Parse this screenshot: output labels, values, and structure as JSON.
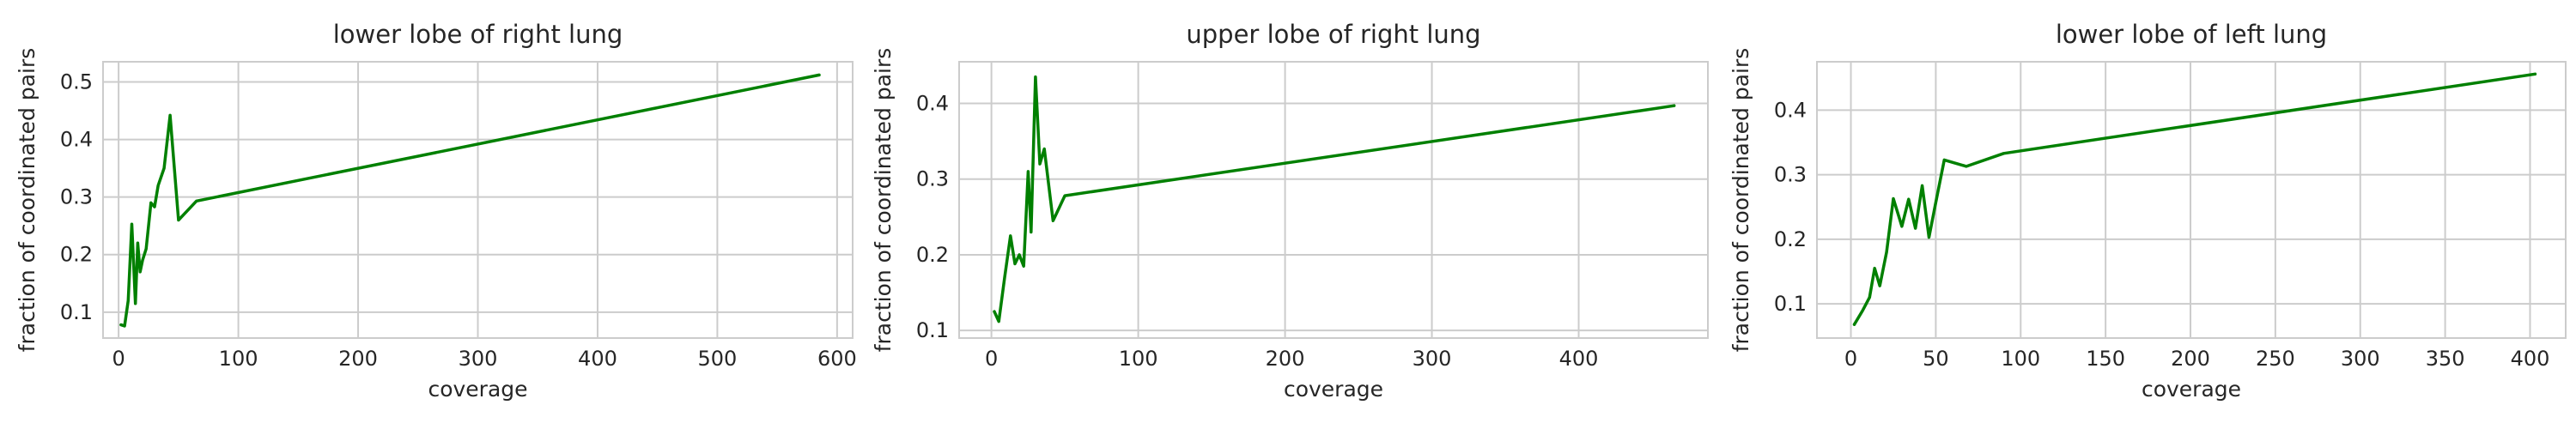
{
  "style": {
    "line_color": "#008000",
    "grid_color": "#cccccc",
    "background": "#ffffff"
  },
  "chart_data": [
    {
      "type": "line",
      "title": "lower lobe of right lung",
      "xlabel": "coverage",
      "ylabel": "fraction of coordinated pairs",
      "xlim": [
        -13,
        613
      ],
      "ylim": [
        0.055,
        0.535
      ],
      "xticks": [
        0,
        100,
        200,
        300,
        400,
        500,
        600
      ],
      "yticks": [
        0.1,
        0.2,
        0.3,
        0.4,
        0.5
      ],
      "grid": true,
      "series": [
        {
          "x": [
            2,
            5,
            8,
            11,
            14,
            16,
            18,
            20,
            23,
            27,
            30,
            33,
            38,
            43,
            50,
            65,
            585
          ],
          "y": [
            0.078,
            0.076,
            0.12,
            0.253,
            0.115,
            0.22,
            0.17,
            0.19,
            0.21,
            0.29,
            0.283,
            0.32,
            0.35,
            0.442,
            0.26,
            0.293,
            0.512
          ]
        }
      ]
    },
    {
      "type": "line",
      "title": "upper lobe of right lung",
      "xlabel": "coverage",
      "ylabel": "fraction of coordinated pairs",
      "xlim": [
        -22,
        488
      ],
      "ylim": [
        0.09,
        0.455
      ],
      "xticks": [
        0,
        100,
        200,
        300,
        400
      ],
      "yticks": [
        0.1,
        0.2,
        0.3,
        0.4
      ],
      "grid": true,
      "series": [
        {
          "x": [
            2,
            5,
            9,
            13,
            16,
            19,
            22,
            25,
            27,
            30,
            33,
            36,
            42,
            50,
            465
          ],
          "y": [
            0.125,
            0.112,
            0.17,
            0.225,
            0.188,
            0.2,
            0.185,
            0.31,
            0.23,
            0.435,
            0.32,
            0.34,
            0.245,
            0.278,
            0.397
          ]
        }
      ]
    },
    {
      "type": "line",
      "title": "lower lobe of left lung",
      "xlabel": "coverage",
      "ylabel": "fraction of coordinated pairs",
      "xlim": [
        -20,
        421
      ],
      "ylim": [
        0.047,
        0.475
      ],
      "xticks": [
        0,
        50,
        100,
        150,
        200,
        250,
        300,
        350,
        400
      ],
      "yticks": [
        0.1,
        0.2,
        0.3,
        0.4
      ],
      "grid": true,
      "series": [
        {
          "x": [
            2,
            7,
            11,
            14,
            17,
            21,
            25,
            30,
            34,
            38,
            42,
            46,
            50,
            55,
            68,
            90,
            403
          ],
          "y": [
            0.068,
            0.09,
            0.11,
            0.155,
            0.128,
            0.18,
            0.263,
            0.22,
            0.262,
            0.217,
            0.283,
            0.203,
            0.257,
            0.323,
            0.313,
            0.333,
            0.456
          ]
        }
      ]
    }
  ]
}
